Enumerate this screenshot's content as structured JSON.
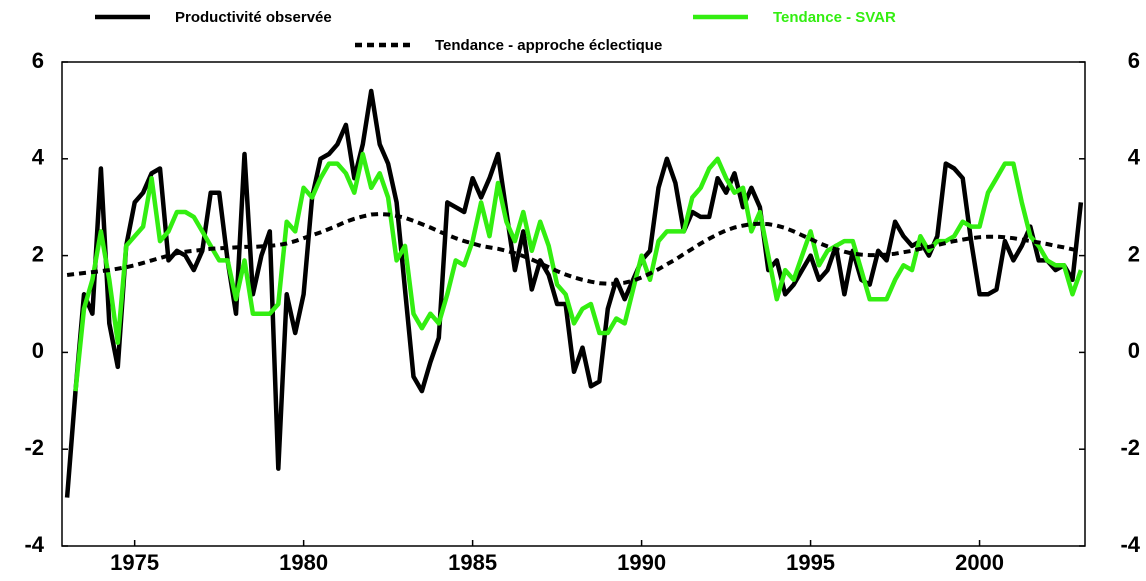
{
  "chart_data": {
    "type": "line",
    "x": [
      1973,
      1973.25,
      1973.5,
      1973.75,
      1974,
      1974.25,
      1974.5,
      1974.75,
      1975,
      1975.25,
      1975.5,
      1975.75,
      1976,
      1976.25,
      1976.5,
      1976.75,
      1977,
      1977.25,
      1977.5,
      1977.75,
      1978,
      1978.25,
      1978.5,
      1978.75,
      1979,
      1979.25,
      1979.5,
      1979.75,
      1980,
      1980.25,
      1980.5,
      1980.75,
      1981,
      1981.25,
      1981.5,
      1981.75,
      1982,
      1982.25,
      1982.5,
      1982.75,
      1983,
      1983.25,
      1983.5,
      1983.75,
      1984,
      1984.25,
      1984.5,
      1984.75,
      1985,
      1985.25,
      1985.5,
      1985.75,
      1986,
      1986.25,
      1986.5,
      1986.75,
      1987,
      1987.25,
      1987.5,
      1987.75,
      1988,
      1988.25,
      1988.5,
      1988.75,
      1989,
      1989.25,
      1989.5,
      1989.75,
      1990,
      1990.25,
      1990.5,
      1990.75,
      1991,
      1991.25,
      1991.5,
      1991.75,
      1992,
      1992.25,
      1992.5,
      1992.75,
      1993,
      1993.25,
      1993.5,
      1993.75,
      1994,
      1994.25,
      1994.5,
      1994.75,
      1995,
      1995.25,
      1995.5,
      1995.75,
      1996,
      1996.25,
      1996.5,
      1996.75,
      1997,
      1997.25,
      1997.5,
      1997.75,
      1998,
      1998.25,
      1998.5,
      1998.75,
      1999,
      1999.25,
      1999.5,
      1999.75,
      2000,
      2000.25,
      2000.5,
      2000.75,
      2001,
      2001.25,
      2001.5,
      2001.75,
      2002,
      2002.25,
      2002.5,
      2002.75,
      2003
    ],
    "series": [
      {
        "name": "Productivité observée",
        "color": "#000000",
        "dash": false,
        "values": [
          -3.0,
          -0.8,
          1.2,
          0.8,
          3.8,
          0.6,
          -0.3,
          2.2,
          3.1,
          3.3,
          3.7,
          3.8,
          1.9,
          2.1,
          2.0,
          1.7,
          2.1,
          3.3,
          3.3,
          1.9,
          0.8,
          4.1,
          1.2,
          2.0,
          2.5,
          -2.4,
          1.2,
          0.4,
          1.2,
          3.2,
          4.0,
          4.1,
          4.3,
          4.7,
          3.6,
          4.3,
          5.4,
          4.3,
          3.9,
          3.1,
          1.3,
          -0.5,
          -0.8,
          -0.2,
          0.3,
          3.1,
          3.0,
          2.9,
          3.6,
          3.2,
          3.6,
          4.1,
          2.9,
          1.7,
          2.5,
          1.3,
          1.9,
          1.6,
          1.0,
          1.0,
          -0.4,
          0.1,
          -0.7,
          -0.6,
          0.9,
          1.5,
          1.1,
          1.5,
          1.9,
          2.1,
          3.4,
          4.0,
          3.5,
          2.5,
          2.9,
          2.8,
          2.8,
          3.6,
          3.3,
          3.7,
          3.0,
          3.4,
          3.0,
          1.7,
          1.9,
          1.2,
          1.4,
          1.7,
          2.0,
          1.5,
          1.7,
          2.2,
          1.2,
          2.1,
          1.5,
          1.4,
          2.1,
          1.9,
          2.7,
          2.4,
          2.2,
          2.3,
          2.0,
          2.4,
          3.9,
          3.8,
          3.6,
          2.3,
          1.2,
          1.2,
          1.3,
          2.3,
          1.9,
          2.2,
          2.6,
          1.9,
          1.9,
          1.7,
          1.8,
          1.5,
          3.1
        ]
      },
      {
        "name": "Tendance - SVAR",
        "color": "#33ee11",
        "dash": false,
        "values": [
          null,
          -0.8,
          0.9,
          1.5,
          2.5,
          1.5,
          0.2,
          2.2,
          2.4,
          2.6,
          3.6,
          2.3,
          2.5,
          2.9,
          2.9,
          2.8,
          2.5,
          2.2,
          1.9,
          1.9,
          1.1,
          1.9,
          0.8,
          0.8,
          0.8,
          1.0,
          2.7,
          2.5,
          3.4,
          3.2,
          3.6,
          3.9,
          3.9,
          3.7,
          3.3,
          4.1,
          3.4,
          3.7,
          3.2,
          1.9,
          2.2,
          0.8,
          0.5,
          0.8,
          0.6,
          1.2,
          1.9,
          1.8,
          2.3,
          3.1,
          2.4,
          3.5,
          2.7,
          2.3,
          2.9,
          2.1,
          2.7,
          2.2,
          1.4,
          1.2,
          0.6,
          0.9,
          1.0,
          0.4,
          0.4,
          0.7,
          0.6,
          1.3,
          2.0,
          1.5,
          2.3,
          2.5,
          2.5,
          2.5,
          3.2,
          3.4,
          3.8,
          4.0,
          3.6,
          3.3,
          3.4,
          2.5,
          2.9,
          2.0,
          1.1,
          1.7,
          1.5,
          2.0,
          2.5,
          1.8,
          2.1,
          2.2,
          2.3,
          2.3,
          1.7,
          1.1,
          1.1,
          1.1,
          1.5,
          1.8,
          1.7,
          2.4,
          2.1,
          2.3,
          2.3,
          2.4,
          2.7,
          2.6,
          2.6,
          3.3,
          3.6,
          3.9,
          3.9,
          3.1,
          2.4,
          2.2,
          1.9,
          1.8,
          1.8,
          1.2,
          1.7
        ]
      },
      {
        "name": "Tendance - approche éclectique",
        "color": "#000000",
        "dash": true,
        "values": [
          1.6,
          1.62,
          1.64,
          1.66,
          1.68,
          1.7,
          1.73,
          1.76,
          1.8,
          1.85,
          1.9,
          1.95,
          2.0,
          2.05,
          2.08,
          2.1,
          2.12,
          2.14,
          2.15,
          2.16,
          2.17,
          2.18,
          2.18,
          2.19,
          2.2,
          2.22,
          2.25,
          2.3,
          2.36,
          2.42,
          2.48,
          2.55,
          2.62,
          2.7,
          2.76,
          2.81,
          2.85,
          2.86,
          2.85,
          2.82,
          2.78,
          2.72,
          2.65,
          2.58,
          2.5,
          2.43,
          2.36,
          2.3,
          2.25,
          2.2,
          2.17,
          2.14,
          2.1,
          2.05,
          1.99,
          1.92,
          1.84,
          1.76,
          1.68,
          1.61,
          1.55,
          1.5,
          1.46,
          1.43,
          1.42,
          1.42,
          1.44,
          1.48,
          1.55,
          1.63,
          1.72,
          1.82,
          1.92,
          2.03,
          2.14,
          2.25,
          2.35,
          2.44,
          2.52,
          2.58,
          2.62,
          2.65,
          2.66,
          2.65,
          2.62,
          2.57,
          2.5,
          2.42,
          2.34,
          2.26,
          2.19,
          2.13,
          2.08,
          2.04,
          2.02,
          2.01,
          2.01,
          2.02,
          2.04,
          2.07,
          2.1,
          2.14,
          2.18,
          2.22,
          2.26,
          2.3,
          2.33,
          2.36,
          2.38,
          2.39,
          2.39,
          2.38,
          2.36,
          2.33,
          2.3,
          2.27,
          2.24,
          2.2,
          2.17,
          2.13,
          2.1
        ]
      }
    ],
    "xlim": [
      1972.85,
      2003.12
    ],
    "xticks": [
      1975,
      1980,
      1985,
      1990,
      1995,
      2000
    ],
    "ylim": [
      -4,
      6
    ],
    "yticks": [
      -4,
      -2,
      0,
      2,
      4,
      6
    ]
  }
}
